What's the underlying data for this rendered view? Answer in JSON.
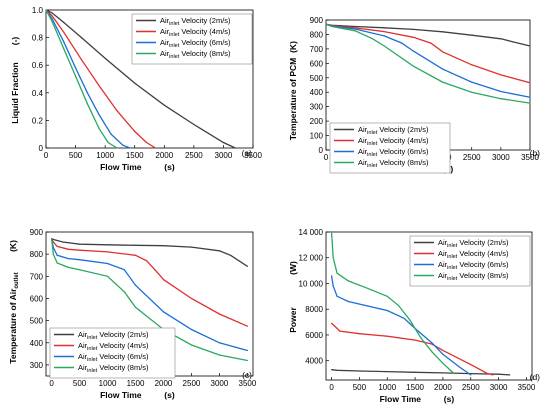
{
  "chart_data": [
    {
      "type": "line",
      "panel_tag": "(a)",
      "xlabel": "Flow Time",
      "xunit": "(s)",
      "ylabel": "Liquid Fraction",
      "yunit": "(-)",
      "xlim": [
        0,
        3500
      ],
      "ylim": [
        0,
        1.0
      ],
      "xticks": [
        "0",
        "500",
        "1000",
        "1500",
        "2000",
        "2500",
        "3000",
        "3500"
      ],
      "yticks": [
        "0",
        "0.2",
        "0.4",
        "0.6",
        "0.8",
        "1.0"
      ],
      "legend_position": "top-right",
      "series": [
        {
          "name": "Air Velocity (2m/s)",
          "name_main": "Air",
          "name_sub": "inlet",
          "name_rest": " Velocity (2m/s)",
          "color": "#404040",
          "x": [
            0,
            100,
            300,
            600,
            1000,
            1500,
            2000,
            2500,
            3000,
            3200
          ],
          "y": [
            1.0,
            0.98,
            0.91,
            0.8,
            0.65,
            0.47,
            0.31,
            0.17,
            0.04,
            0.0
          ]
        },
        {
          "name": "Air Velocity (4m/s)",
          "name_main": "Air",
          "name_sub": "inlet",
          "name_rest": " Velocity (4m/s)",
          "color": "#e03030",
          "x": [
            0,
            100,
            300,
            600,
            900,
            1200,
            1500,
            1700,
            1850
          ],
          "y": [
            1.0,
            0.96,
            0.84,
            0.64,
            0.45,
            0.27,
            0.12,
            0.04,
            0.0
          ]
        },
        {
          "name": "Air Velocity (6m/s)",
          "name_main": "Air",
          "name_sub": "inlet",
          "name_rest": " Velocity (6m/s)",
          "color": "#1a6fd6",
          "x": [
            0,
            100,
            300,
            500,
            700,
            900,
            1100,
            1300,
            1420
          ],
          "y": [
            1.0,
            0.94,
            0.77,
            0.58,
            0.4,
            0.24,
            0.1,
            0.02,
            0.0
          ]
        },
        {
          "name": "Air Velocity (8m/s)",
          "name_main": "Air",
          "name_sub": "inlet",
          "name_rest": " Velocity (8m/s)",
          "color": "#2aa860",
          "x": [
            0,
            100,
            300,
            500,
            700,
            900,
            1050,
            1200
          ],
          "y": [
            1.0,
            0.92,
            0.72,
            0.52,
            0.32,
            0.14,
            0.04,
            0.0
          ]
        }
      ]
    },
    {
      "type": "line",
      "panel_tag": "(b)",
      "xlabel": "Flow Time",
      "xunit": "(s)",
      "ylabel": "Temperature of PCM",
      "yunit": "(K)",
      "xlim": [
        0,
        3500
      ],
      "ylim": [
        0,
        900
      ],
      "xticks": [
        "0",
        "500",
        "1000",
        "1500",
        "2000",
        "2500",
        "3000",
        "3500"
      ],
      "yticks": [
        "0",
        "100",
        "200",
        "300",
        "400",
        "500",
        "600",
        "700",
        "800",
        "900"
      ],
      "legend_position": "center-left",
      "series": [
        {
          "name": "Air Velocity (2m/s)",
          "name_main": "Air",
          "name_sub": "inlet",
          "name_rest": " Velocity (2m/s)",
          "color": "#404040",
          "x": [
            0,
            100,
            500,
            1000,
            1500,
            2000,
            2500,
            3000,
            3200,
            3500
          ],
          "y": [
            870,
            863,
            855,
            846,
            835,
            818,
            795,
            770,
            750,
            720
          ]
        },
        {
          "name": "Air Velocity (4m/s)",
          "name_main": "Air",
          "name_sub": "inlet",
          "name_rest": " Velocity (4m/s)",
          "color": "#e03030",
          "x": [
            0,
            100,
            500,
            1000,
            1500,
            1800,
            2000,
            2500,
            3000,
            3500
          ],
          "y": [
            870,
            860,
            845,
            820,
            780,
            740,
            680,
            590,
            520,
            465
          ]
        },
        {
          "name": "Air Velocity (6m/s)",
          "name_main": "Air",
          "name_sub": "inlet",
          "name_rest": " Velocity (6m/s)",
          "color": "#1a6fd6",
          "x": [
            0,
            100,
            500,
            1000,
            1300,
            1500,
            2000,
            2500,
            3000,
            3500
          ],
          "y": [
            870,
            858,
            838,
            790,
            740,
            685,
            560,
            470,
            405,
            365
          ]
        },
        {
          "name": "Air Velocity (8m/s)",
          "name_main": "Air",
          "name_sub": "inlet",
          "name_rest": " Velocity (8m/s)",
          "color": "#2aa860",
          "x": [
            0,
            100,
            500,
            800,
            1000,
            1500,
            2000,
            2500,
            3000,
            3500
          ],
          "y": [
            870,
            855,
            825,
            770,
            720,
            580,
            470,
            400,
            355,
            325
          ]
        }
      ]
    },
    {
      "type": "line",
      "panel_tag": "(c)",
      "xlabel": "Flow Time",
      "xunit": "(s)",
      "ylabel": "Temperature of Air",
      "ylabel_sub": "outlet",
      "yunit": "(K)",
      "xlim": [
        -100,
        3600
      ],
      "ylim": [
        250,
        900
      ],
      "xticks": [
        "0",
        "500",
        "1000",
        "1500",
        "2000",
        "2500",
        "3000",
        "3500"
      ],
      "yticks": [
        "300",
        "400",
        "500",
        "600",
        "700",
        "800",
        "900"
      ],
      "legend_position": "bottom-left",
      "series": [
        {
          "name": "Air Velocity (2m/s)",
          "name_main": "Air",
          "name_sub": "inlet",
          "name_rest": " Velocity (2m/s)",
          "color": "#404040",
          "x": [
            0,
            50,
            200,
            500,
            1000,
            1500,
            2000,
            2500,
            3000,
            3200,
            3500
          ],
          "y": [
            870,
            865,
            855,
            845,
            842,
            840,
            838,
            832,
            815,
            795,
            745
          ]
        },
        {
          "name": "Air Velocity (4m/s)",
          "name_main": "Air",
          "name_sub": "inlet",
          "name_rest": " Velocity (4m/s)",
          "color": "#e03030",
          "x": [
            0,
            30,
            100,
            300,
            500,
            1000,
            1500,
            1700,
            1900,
            2000,
            2500,
            3000,
            3500
          ],
          "y": [
            870,
            855,
            835,
            822,
            818,
            810,
            795,
            770,
            715,
            685,
            600,
            530,
            475
          ]
        },
        {
          "name": "Air Velocity (6m/s)",
          "name_main": "Air",
          "name_sub": "inlet",
          "name_rest": " Velocity (6m/s)",
          "color": "#1a6fd6",
          "x": [
            0,
            30,
            100,
            300,
            500,
            1000,
            1300,
            1500,
            2000,
            2500,
            3000,
            3500
          ],
          "y": [
            870,
            830,
            795,
            780,
            775,
            758,
            730,
            660,
            540,
            460,
            400,
            365
          ]
        },
        {
          "name": "Air Velocity (8m/s)",
          "name_main": "Air",
          "name_sub": "inlet",
          "name_rest": " Velocity (8m/s)",
          "color": "#2aa860",
          "x": [
            0,
            30,
            100,
            300,
            500,
            1000,
            1300,
            1500,
            2000,
            2500,
            3000,
            3500
          ],
          "y": [
            870,
            800,
            760,
            740,
            730,
            700,
            630,
            560,
            460,
            390,
            345,
            320
          ]
        }
      ]
    },
    {
      "type": "line",
      "panel_tag": "(d)",
      "xlabel": "Flow Time",
      "xunit": "(s)",
      "ylabel": "Power",
      "yunit": "(W)",
      "xlim": [
        -100,
        3600
      ],
      "ylim": [
        2500,
        14000
      ],
      "xticks": [
        "0",
        "500",
        "1000",
        "1500",
        "2000",
        "2500",
        "3000",
        "3500"
      ],
      "yticks": [
        "4000",
        "6000",
        "8000",
        "10 000",
        "12 000",
        "14 000"
      ],
      "legend_position": "top-right",
      "series": [
        {
          "name": "Air Velocity (2m/s)",
          "name_main": "Air",
          "name_sub": "inlet",
          "name_rest": " Velocity (2m/s)",
          "color": "#404040",
          "x": [
            0,
            100,
            500,
            1000,
            1500,
            2000,
            2500,
            3000,
            3200
          ],
          "y": [
            3300,
            3250,
            3200,
            3150,
            3100,
            3050,
            3000,
            2950,
            2900
          ]
        },
        {
          "name": "Air Velocity (4m/s)",
          "name_main": "Air",
          "name_sub": "inlet",
          "name_rest": " Velocity (4m/s)",
          "color": "#e03030",
          "x": [
            0,
            50,
            150,
            500,
            1000,
            1500,
            1800,
            2000,
            2500,
            2800,
            2900
          ],
          "y": [
            6900,
            6700,
            6300,
            6100,
            5900,
            5600,
            5300,
            4800,
            3700,
            3000,
            2900
          ]
        },
        {
          "name": "Air Velocity (6m/s)",
          "name_main": "Air",
          "name_sub": "inlet",
          "name_rest": " Velocity (6m/s)",
          "color": "#1a6fd6",
          "x": [
            0,
            30,
            100,
            300,
            600,
            1000,
            1300,
            1500,
            1800,
            2000,
            2300,
            2500
          ],
          "y": [
            10600,
            9800,
            9000,
            8600,
            8300,
            7900,
            7300,
            6500,
            5400,
            4500,
            3500,
            2900
          ]
        },
        {
          "name": "Air Velocity (8m/s)",
          "name_main": "Air",
          "name_sub": "inlet",
          "name_rest": " Velocity (8m/s)",
          "color": "#2aa860",
          "x": [
            0,
            30,
            100,
            300,
            600,
            1000,
            1200,
            1400,
            1600,
            1800,
            2000,
            2200
          ],
          "y": [
            13900,
            12000,
            10800,
            10200,
            9700,
            9000,
            8300,
            7200,
            5800,
            4700,
            3800,
            3000
          ]
        }
      ]
    }
  ]
}
